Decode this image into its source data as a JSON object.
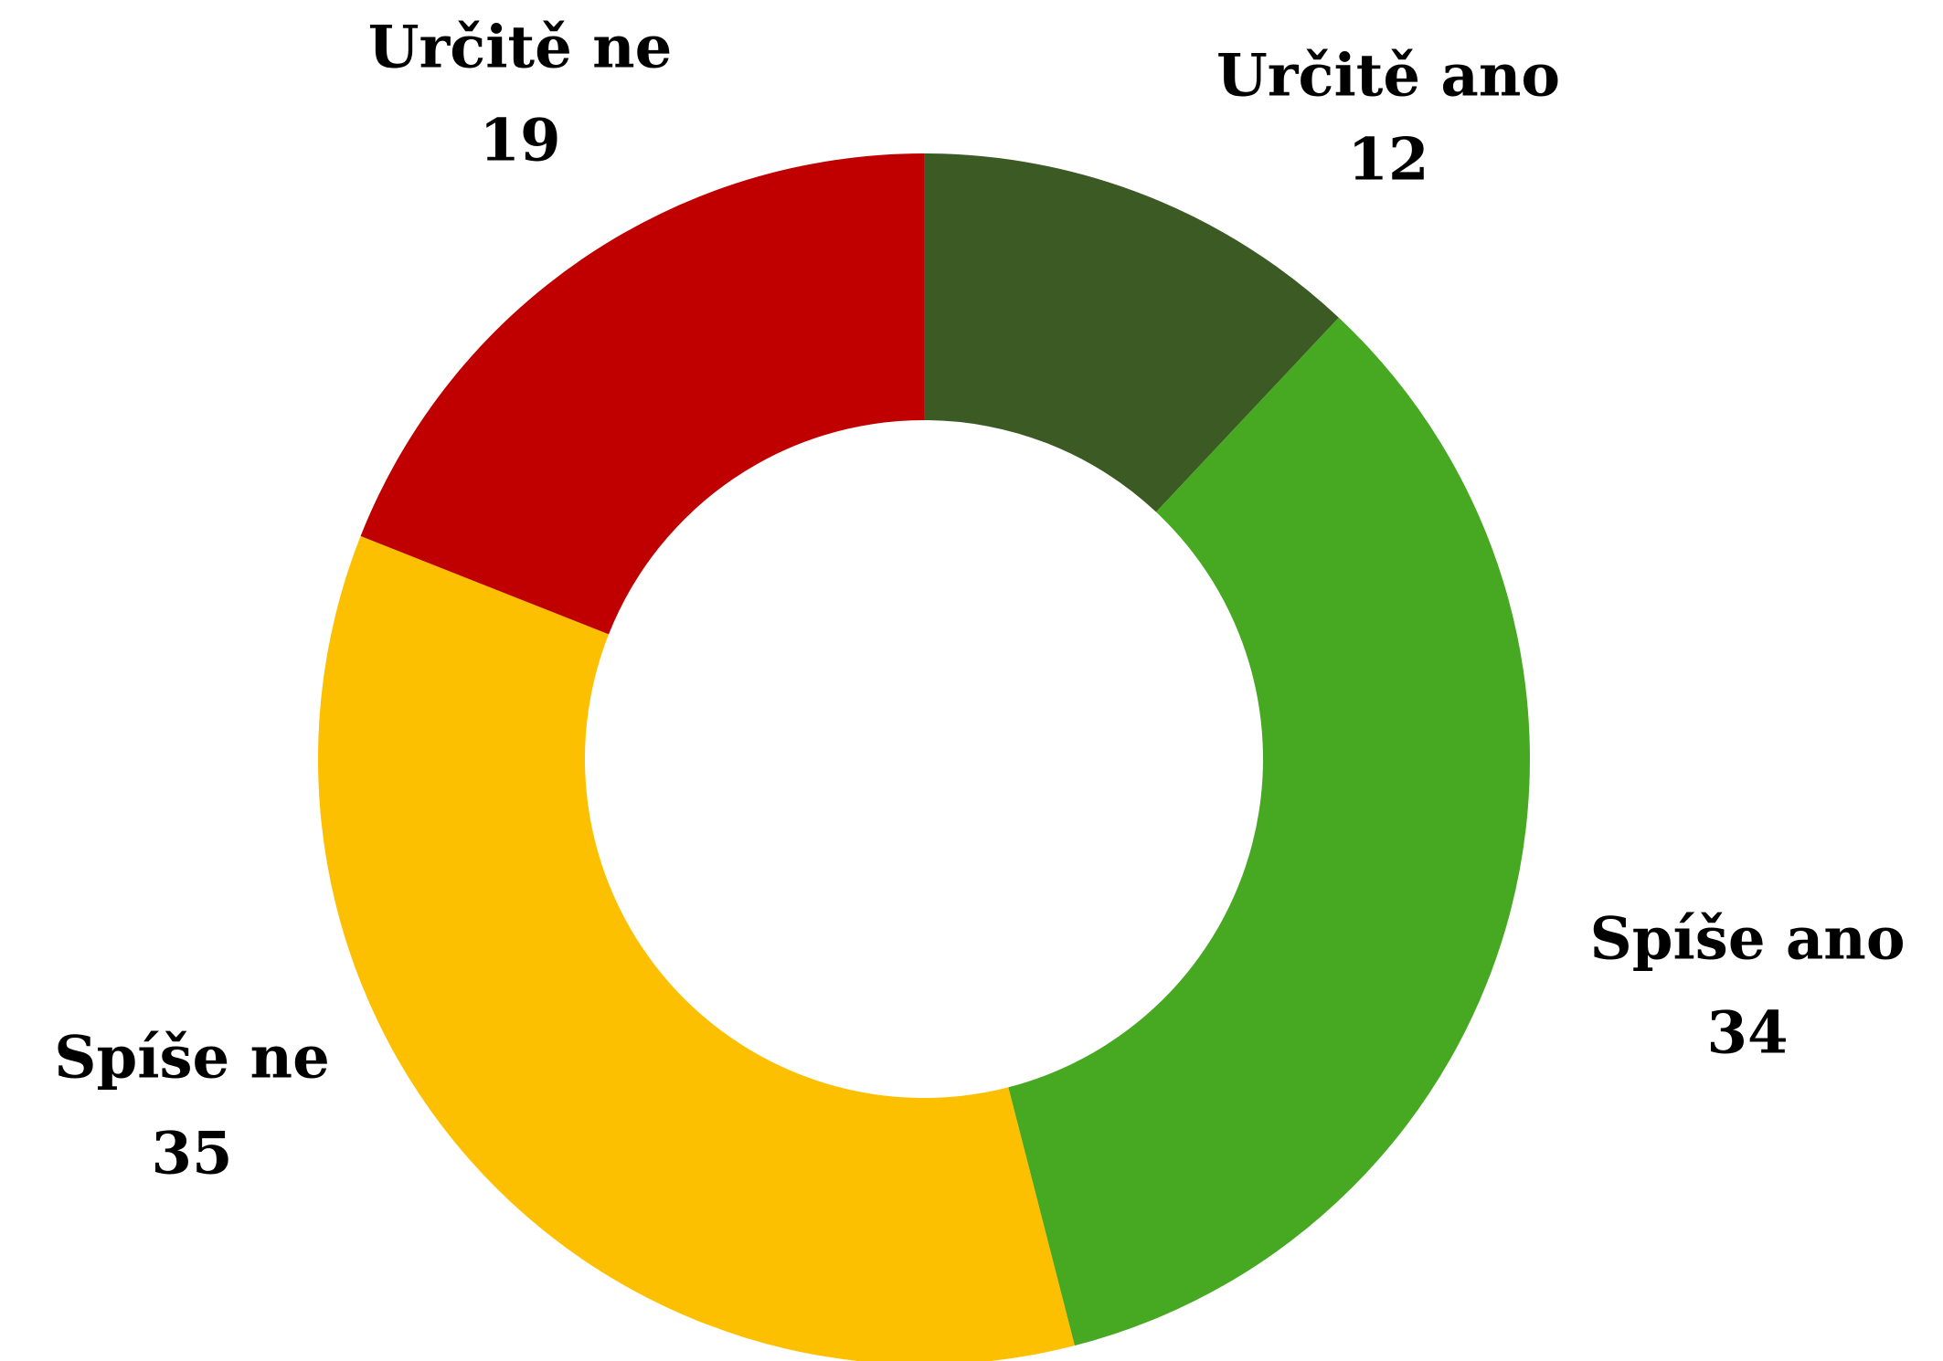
{
  "chart_data": {
    "type": "doughnut",
    "categories": [
      "Určitě ano",
      "Spíše ano",
      "Spíše ne",
      "Určitě ne"
    ],
    "values": [
      12,
      34,
      35,
      19
    ],
    "colors": [
      "#3b5a24",
      "#47a822",
      "#fdc000",
      "#c00000"
    ]
  }
}
